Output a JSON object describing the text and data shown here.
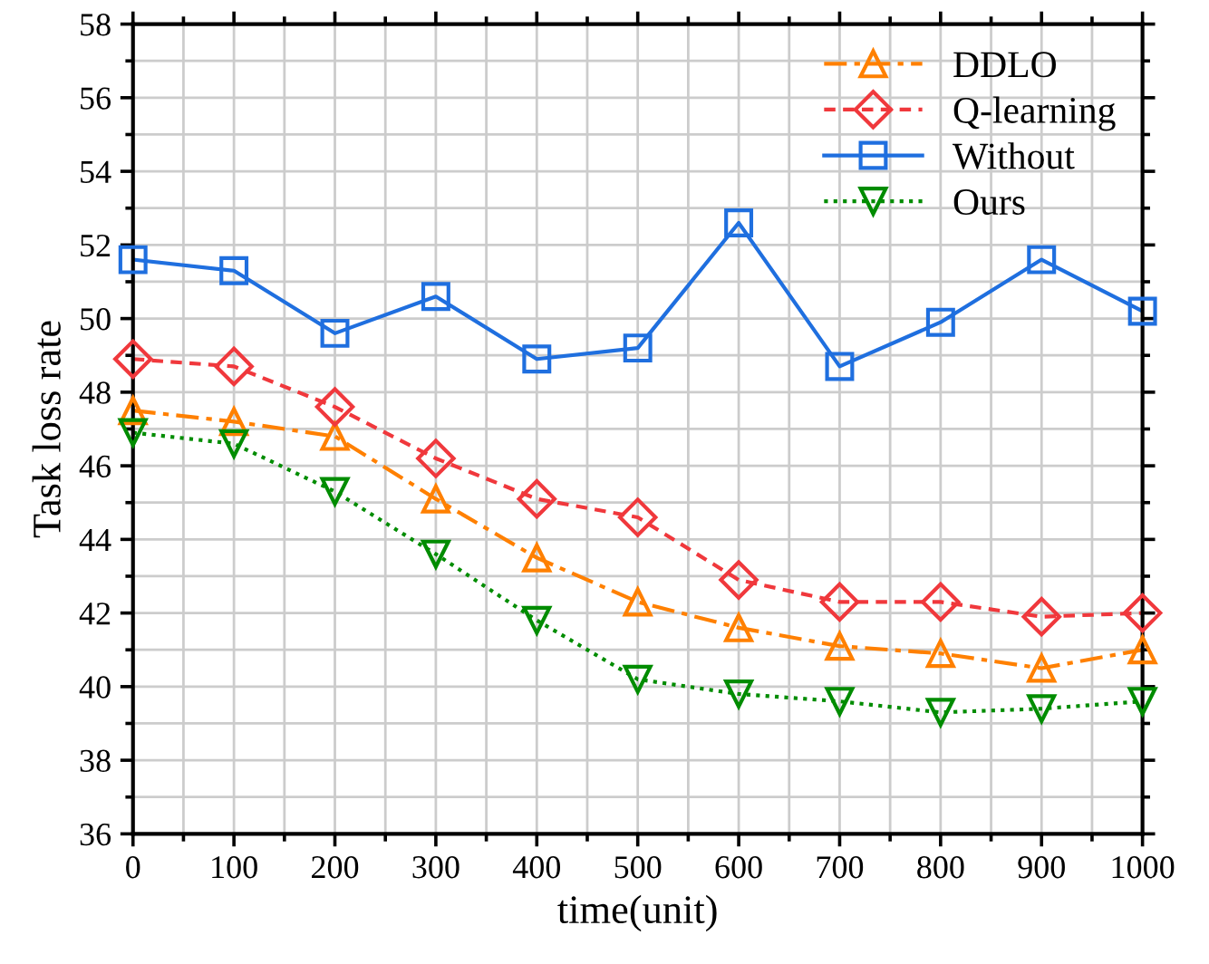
{
  "chart_data": {
    "type": "line",
    "xlabel": "time(unit)",
    "ylabel": "Task loss rate",
    "x": [
      0,
      100,
      200,
      300,
      400,
      500,
      600,
      700,
      800,
      900,
      1000
    ],
    "series": [
      {
        "name": "DDLO",
        "color": "#ff8000",
        "marker": "triangle",
        "line_style": "dashdot",
        "values": [
          47.5,
          47.2,
          46.8,
          45.1,
          43.5,
          42.3,
          41.6,
          41.1,
          40.9,
          40.5,
          41.0
        ]
      },
      {
        "name": "Q-learning",
        "color": "#f0383c",
        "marker": "diamond",
        "line_style": "dashed",
        "values": [
          48.9,
          48.7,
          47.6,
          46.2,
          45.1,
          44.6,
          42.9,
          42.3,
          42.3,
          41.9,
          42.0
        ]
      },
      {
        "name": "Without",
        "color": "#1f6fdf",
        "marker": "square",
        "line_style": "solid",
        "values": [
          51.6,
          51.3,
          49.6,
          50.6,
          48.9,
          49.2,
          52.6,
          48.7,
          49.9,
          51.6,
          50.2
        ]
      },
      {
        "name": "Ours",
        "color": "#008c00",
        "marker": "triangle_down",
        "line_style": "dotted",
        "values": [
          46.9,
          46.6,
          45.3,
          43.6,
          41.8,
          40.2,
          39.8,
          39.6,
          39.3,
          39.4,
          39.6
        ]
      }
    ],
    "xlim": [
      0,
      1000
    ],
    "xticks": [
      0,
      100,
      200,
      300,
      400,
      500,
      600,
      700,
      800,
      900,
      1000
    ],
    "ylim": [
      36,
      58
    ],
    "yticks": [
      36,
      38,
      40,
      42,
      44,
      46,
      48,
      50,
      52,
      54,
      56,
      58
    ],
    "grid": true,
    "legend": "top right"
  }
}
